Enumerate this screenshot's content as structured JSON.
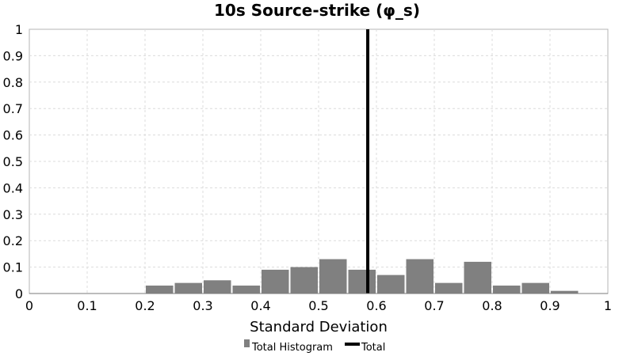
{
  "chart_data": {
    "type": "bar",
    "title": "10s Source-strike (φ_s)",
    "xlabel": "Standard Deviation",
    "ylabel": "",
    "xlim": [
      0,
      1
    ],
    "ylim": [
      0,
      1
    ],
    "x_ticks": [
      "0",
      "0.1",
      "0.2",
      "0.3",
      "0.4",
      "0.5",
      "0.6",
      "0.7",
      "0.8",
      "0.9",
      "1"
    ],
    "y_ticks": [
      "0",
      "0.1",
      "0.2",
      "0.3",
      "0.4",
      "0.5",
      "0.6",
      "0.7",
      "0.8",
      "0.9",
      "1"
    ],
    "grid": true,
    "bin_width": 0.05,
    "series": [
      {
        "name": "Total Histogram",
        "color": "#808080",
        "bins": [
          {
            "start": 0.2,
            "end": 0.25,
            "value": 0.03
          },
          {
            "start": 0.25,
            "end": 0.3,
            "value": 0.04
          },
          {
            "start": 0.3,
            "end": 0.35,
            "value": 0.05
          },
          {
            "start": 0.35,
            "end": 0.4,
            "value": 0.03
          },
          {
            "start": 0.4,
            "end": 0.45,
            "value": 0.09
          },
          {
            "start": 0.45,
            "end": 0.5,
            "value": 0.1
          },
          {
            "start": 0.5,
            "end": 0.55,
            "value": 0.13
          },
          {
            "start": 0.55,
            "end": 0.6,
            "value": 0.09
          },
          {
            "start": 0.6,
            "end": 0.65,
            "value": 0.07
          },
          {
            "start": 0.65,
            "end": 0.7,
            "value": 0.13
          },
          {
            "start": 0.7,
            "end": 0.75,
            "value": 0.04
          },
          {
            "start": 0.75,
            "end": 0.8,
            "value": 0.12
          },
          {
            "start": 0.8,
            "end": 0.85,
            "value": 0.03
          },
          {
            "start": 0.85,
            "end": 0.9,
            "value": 0.04
          },
          {
            "start": 0.9,
            "end": 0.95,
            "value": 0.01
          }
        ]
      },
      {
        "name": "Total",
        "type": "vertical-line",
        "color": "#000000",
        "x": 0.585
      }
    ],
    "legend": {
      "position": "bottom-center",
      "entries": [
        "Total Histogram",
        "Total"
      ]
    }
  }
}
